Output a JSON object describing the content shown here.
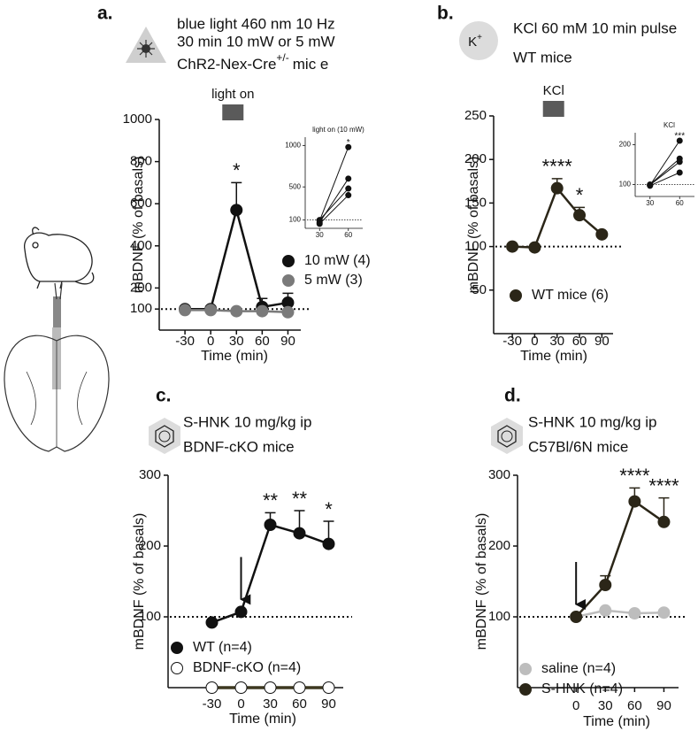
{
  "chart_data": [
    {
      "type": "line",
      "panel_label": "a.",
      "header_lines": [
        "blue light 460 nm 10 Hz",
        "30 min 10 mW or 5 mW"
      ],
      "strain": "ChR2-Nex-Cre",
      "strain_superscript": "+/-",
      "strain_suffix": "mic e",
      "stimulus": {
        "label": "light on",
        "x": 30
      },
      "y_label": "mBDNF (% of basals)",
      "x_label": "Time (min)",
      "x": [
        -30,
        0,
        30,
        60,
        90
      ],
      "xlim": [
        -60,
        105
      ],
      "xticks": [
        -30,
        0,
        30,
        60,
        90
      ],
      "ylim": [
        0,
        1000
      ],
      "yticks": [
        100,
        200,
        400,
        600,
        800,
        1000
      ],
      "reference_line": 100,
      "series": [
        {
          "name": "10 mW (4)",
          "color": "#111111",
          "values": [
            100,
            100,
            570,
            110,
            130
          ],
          "errors": [
            8,
            12,
            130,
            40,
            45
          ]
        },
        {
          "name": "5 mW (3)",
          "color": "#7a7a7a",
          "values": [
            95,
            95,
            90,
            90,
            85
          ],
          "errors": [
            null,
            null,
            null,
            null,
            null
          ]
        }
      ],
      "annotations": [
        {
          "x": 30,
          "text": "*"
        }
      ]
    },
    {
      "type": "line",
      "title": "light on (10 mW)",
      "x": [
        30,
        60
      ],
      "xlim": [
        15,
        75
      ],
      "xticks": [
        30,
        60
      ],
      "ylim": [
        0,
        1100
      ],
      "yticks": [
        100,
        500,
        1000
      ],
      "reference_line": 100,
      "series": [
        {
          "color": "#111111",
          "values": [
            90,
            980
          ]
        },
        {
          "color": "#111111",
          "values": [
            70,
            600
          ]
        },
        {
          "color": "#111111",
          "values": [
            100,
            480
          ]
        },
        {
          "color": "#111111",
          "values": [
            55,
            400
          ]
        }
      ],
      "annotations": [
        {
          "x": 60,
          "text": "*"
        }
      ]
    },
    {
      "type": "line",
      "panel_label": "b.",
      "icon_text": "K",
      "icon_superscript": "+",
      "header_lines": [
        "KCl 60 mM 10 min pulse",
        "WT mice"
      ],
      "stimulus": {
        "label": "KCl",
        "x": 30
      },
      "y_label": "mBDNF (% of basals)",
      "x_label": "Time (min)",
      "x": [
        -30,
        0,
        30,
        60,
        90
      ],
      "xlim": [
        -55,
        105
      ],
      "xticks": [
        -30,
        0,
        30,
        60,
        90
      ],
      "ylim": [
        0,
        250
      ],
      "yticks": [
        50,
        100,
        150,
        200,
        250
      ],
      "reference_line": 100,
      "series": [
        {
          "name": "WT mice (6)",
          "color": "#2b2618",
          "values": [
            100,
            99,
            167,
            136,
            114
          ],
          "errors": [
            null,
            null,
            11,
            9,
            3
          ]
        }
      ],
      "annotations": [
        {
          "x": 30,
          "text": "****"
        },
        {
          "x": 60,
          "text": "*"
        }
      ]
    },
    {
      "type": "line",
      "title": "KCl",
      "x": [
        30,
        60
      ],
      "xlim": [
        15,
        75
      ],
      "xticks": [
        30,
        60
      ],
      "ylim": [
        70,
        230
      ],
      "yticks": [
        100,
        200
      ],
      "reference_line": 100,
      "series": [
        {
          "color": "#111111",
          "values": [
            98,
            210
          ]
        },
        {
          "color": "#111111",
          "values": [
            100,
            165
          ]
        },
        {
          "color": "#111111",
          "values": [
            99,
            157
          ]
        },
        {
          "color": "#111111",
          "values": [
            97,
            130
          ]
        }
      ],
      "annotations": [
        {
          "x": 60,
          "text": "***"
        }
      ]
    },
    {
      "type": "line",
      "panel_label": "c.",
      "header_lines": [
        "S-HNK 10 mg/kg ip",
        "BDNF-cKO mice"
      ],
      "y_label": "mBDNF (% of basals)",
      "x_label": "Time (min)",
      "x": [
        -30,
        0,
        30,
        60,
        90
      ],
      "xlim": [
        -75,
        105
      ],
      "xticks": [
        -30,
        0,
        30,
        60,
        90
      ],
      "ylim": [
        0,
        300
      ],
      "yticks": [
        100,
        200,
        300
      ],
      "reference_line": 100,
      "arrow_x": 0,
      "series": [
        {
          "name": "WT (n=4)",
          "color": "#111111",
          "values": [
            92,
            107,
            230,
            218,
            203
          ],
          "errors": [
            null,
            null,
            17,
            32,
            32
          ]
        },
        {
          "name": "BDNF-cKO (n=4)",
          "color": "#ffffff",
          "edgecolor": "#111111",
          "linecolor": "#3d3820",
          "values": [
            0,
            0,
            0,
            0,
            0
          ]
        }
      ],
      "annotations": [
        {
          "x": 30,
          "text": "**"
        },
        {
          "x": 60,
          "text": "**"
        },
        {
          "x": 90,
          "text": "*"
        }
      ]
    },
    {
      "type": "line",
      "panel_label": "d.",
      "header_lines": [
        "S-HNK 10 mg/kg ip",
        "C57Bl/6N mice"
      ],
      "y_label": "mBDNF (% of basals)",
      "x_label": "Time (min)",
      "x": [
        0,
        30,
        60,
        90
      ],
      "xlim": [
        -60,
        105
      ],
      "xticks": [
        0,
        30,
        60,
        90
      ],
      "ylim": [
        0,
        300
      ],
      "yticks": [
        100,
        200,
        300
      ],
      "reference_line": 100,
      "arrow_x": 0,
      "series": [
        {
          "name": "saline (n=4)",
          "color": "#bdbdbd",
          "values": [
            100,
            109,
            105,
            106
          ]
        },
        {
          "name": "S-HNK (n=4)",
          "color": "#2b2618",
          "values": [
            100,
            145,
            263,
            234
          ],
          "errors": [
            null,
            13,
            19,
            34
          ]
        }
      ],
      "annotations": [
        {
          "x": 60,
          "text": "****"
        },
        {
          "x": 90,
          "text": "****"
        }
      ]
    }
  ]
}
